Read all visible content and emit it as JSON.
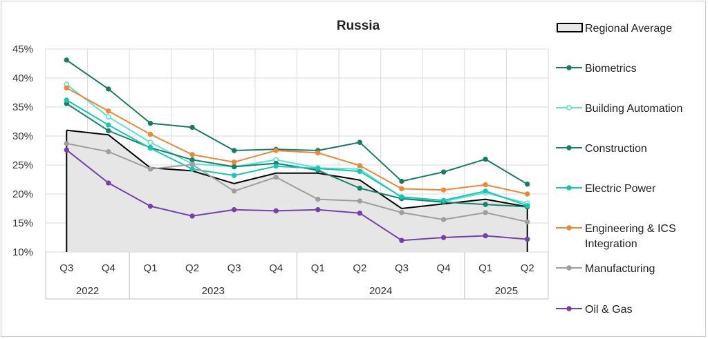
{
  "chart_data": {
    "type": "line",
    "title": "Russia",
    "ylim": [
      10,
      45
    ],
    "y_ticks": [
      "10%",
      "15%",
      "20%",
      "25%",
      "30%",
      "35%",
      "40%",
      "45%"
    ],
    "categories": [
      "Q3",
      "Q4",
      "Q1",
      "Q2",
      "Q3",
      "Q4",
      "Q1",
      "Q2",
      "Q3",
      "Q4",
      "Q1",
      "Q2"
    ],
    "years": [
      {
        "label": "2022",
        "span": 2
      },
      {
        "label": "2023",
        "span": 4
      },
      {
        "label": "2024",
        "span": 4
      },
      {
        "label": "2025",
        "span": 2
      }
    ],
    "legend_position": "right",
    "series": [
      {
        "name": "Regional Average",
        "kind": "area",
        "color": "#000000",
        "fill": "#e6e6e6",
        "values": [
          31.0,
          30.2,
          24.5,
          24.0,
          21.8,
          23.6,
          23.6,
          22.4,
          17.5,
          18.3,
          19.1,
          17.8
        ]
      },
      {
        "name": "Biometrics",
        "color": "#1b7a63",
        "values": [
          43.1,
          38.1,
          32.2,
          31.5,
          27.5,
          27.7,
          27.5,
          28.9,
          22.2,
          23.8,
          26.0,
          21.7
        ]
      },
      {
        "name": "Building Automation",
        "color": "#5fe0d0",
        "hollow": true,
        "values": [
          38.9,
          33.3,
          28.9,
          25.2,
          24.7,
          25.9,
          24.5,
          24.3,
          19.4,
          18.7,
          20.2,
          18.4
        ]
      },
      {
        "name": "Construction",
        "color": "#16826b",
        "values": [
          35.6,
          30.9,
          28.0,
          25.9,
          24.7,
          25.3,
          24.1,
          21.0,
          19.2,
          18.6,
          18.2,
          17.8
        ]
      },
      {
        "name": "Electric Power",
        "color": "#19c4b5",
        "values": [
          36.2,
          31.9,
          27.9,
          24.3,
          23.2,
          24.8,
          24.4,
          23.9,
          19.5,
          18.9,
          20.5,
          18.0
        ]
      },
      {
        "name": "Engineering & ICS Integration",
        "color": "#ee8638",
        "values": [
          38.3,
          34.3,
          30.3,
          26.8,
          25.5,
          27.5,
          27.1,
          24.9,
          20.9,
          20.7,
          21.6,
          20.0
        ]
      },
      {
        "name": "Manufacturing",
        "color": "#9e9e9e",
        "values": [
          28.7,
          27.3,
          24.3,
          25.1,
          20.5,
          22.9,
          19.1,
          18.8,
          16.8,
          15.6,
          16.8,
          15.2
        ]
      },
      {
        "name": "Oil & Gas",
        "color": "#7540a8",
        "values": [
          27.6,
          21.9,
          17.9,
          16.2,
          17.3,
          17.1,
          17.3,
          16.7,
          12.0,
          12.5,
          12.8,
          12.2
        ]
      }
    ]
  }
}
